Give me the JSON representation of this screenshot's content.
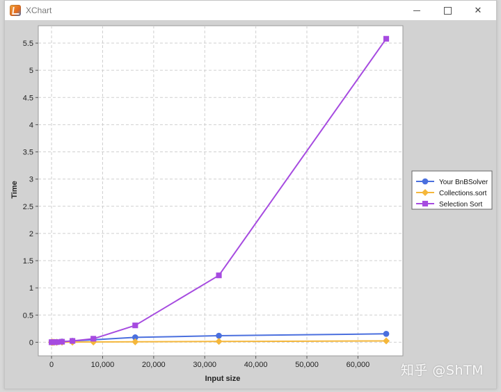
{
  "window": {
    "title": "XChart",
    "minimize_glyph": "",
    "maximize_glyph": "",
    "close_glyph": "✕"
  },
  "watermark": "知乎 @ShTM",
  "colors": {
    "plot_background": "#ffffff",
    "chart_background": "#d2d2d2",
    "grid": "#cfcfcf",
    "series_bnb": "#4a6fde",
    "series_collections": "#f5b73b",
    "series_selection": "#a64be0"
  },
  "chart_data": {
    "type": "line",
    "title": "",
    "xlabel": "Input size",
    "ylabel": "Time",
    "xlim": [
      -2600,
      68800
    ],
    "ylim": [
      -0.25,
      5.82
    ],
    "x_ticks": [
      0,
      10000,
      20000,
      30000,
      40000,
      50000,
      60000
    ],
    "x_tick_labels": [
      "0",
      "10,000",
      "20,000",
      "30,000",
      "40,000",
      "50,000",
      "60,000"
    ],
    "y_ticks": [
      0,
      0.5,
      1,
      1.5,
      2,
      2.5,
      3,
      3.5,
      4,
      4.5,
      5,
      5.5
    ],
    "y_tick_labels": [
      "0",
      "0.5",
      "1",
      "1.5",
      "2",
      "2.5",
      "3",
      "3.5",
      "4",
      "4.5",
      "5",
      "5.5"
    ],
    "grid": true,
    "legend_position": "outside-right",
    "x": [
      16,
      32,
      64,
      128,
      256,
      512,
      1024,
      2048,
      4096,
      8192,
      16384,
      32768,
      65536
    ],
    "series": [
      {
        "name": "Your BnBSolver",
        "marker": "circle",
        "color": "#4a6fde",
        "values": [
          0,
          0,
          0,
          0,
          0,
          0.002,
          0.005,
          0.012,
          0.025,
          0.045,
          0.09,
          0.12,
          0.155
        ]
      },
      {
        "name": "Collections.sort",
        "marker": "diamond",
        "color": "#f5b73b",
        "values": [
          0,
          0,
          0,
          0,
          0,
          0,
          0,
          0.002,
          0.003,
          0.005,
          0.008,
          0.015,
          0.025
        ]
      },
      {
        "name": "Selection Sort",
        "marker": "square",
        "color": "#a64be0",
        "values": [
          0,
          0,
          0,
          0,
          0,
          0,
          0.003,
          0.01,
          0.025,
          0.065,
          0.31,
          1.23,
          5.58
        ]
      }
    ]
  }
}
